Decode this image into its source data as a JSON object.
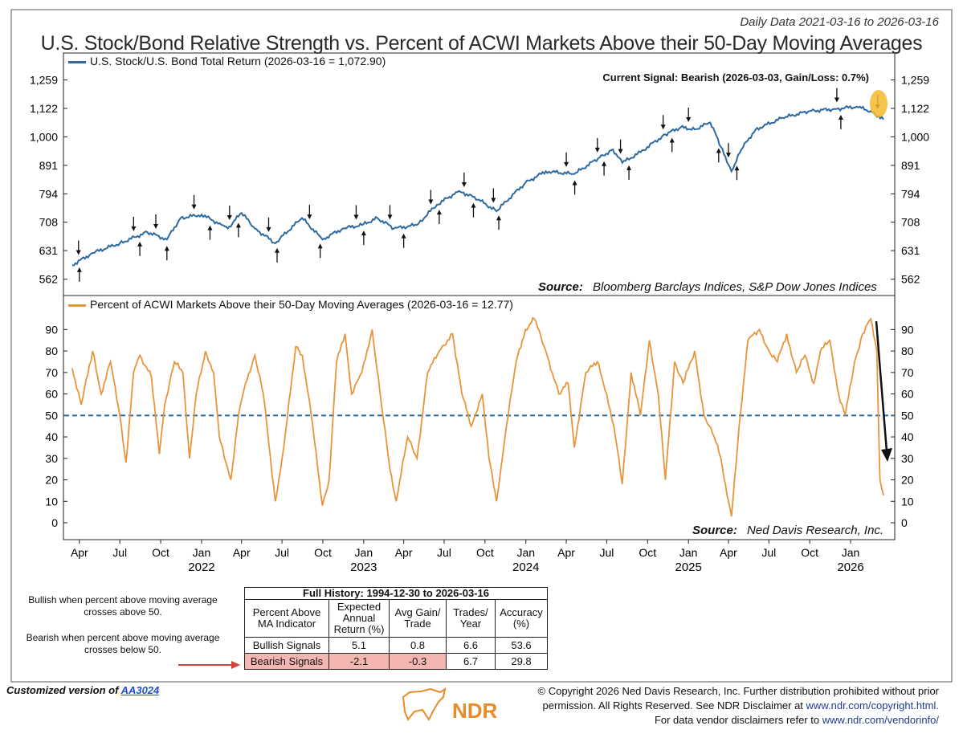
{
  "header": {
    "date_range": "Daily Data 2021-03-16 to 2026-03-16",
    "title": "U.S. Stock/Bond Relative Strength vs. Percent of ACWI Markets Above their 50-Day Moving Averages"
  },
  "top_panel": {
    "legend": "U.S. Stock/U.S. Bond Total Return (2026-03-16 = 1,072.90)",
    "signal": "Current Signal: Bearish (2026-03-03, Gain/Loss: 0.7%)",
    "source_label": "Source:",
    "source_text": "Bloomberg Barclays Indices, S&P Dow Jones Indices"
  },
  "bottom_panel": {
    "legend": "Percent of ACWI Markets Above their 50-Day Moving Averages (2026-03-16 = 12.77)",
    "source_label": "Source:",
    "source_text": "Ned Davis Research, Inc."
  },
  "colors": {
    "stock_bond": "#2d6a9f",
    "acwi": "#e8943a",
    "threshold": "#2d6a9f",
    "highlight": "#f5b82e",
    "bearish_fill": "#f4b6b0"
  },
  "notes": {
    "bullish": "Bullish when percent above moving average crosses above 50.",
    "bearish": "Bearish when percent above moving average crosses below 50."
  },
  "table": {
    "title": "Full History: 1994-12-30 to 2026-03-16",
    "headers": [
      "Percent Above MA Indicator",
      "Expected Annual Return (%)",
      "Avg Gain/ Trade",
      "Trades/ Year",
      "Accuracy (%)"
    ],
    "rows": [
      [
        "Bullish Signals",
        "5.1",
        "0.8",
        "6.6",
        "53.6"
      ],
      [
        "Bearish Signals",
        "-2.1",
        "-0.3",
        "6.7",
        "29.8"
      ]
    ]
  },
  "footer": {
    "custom_prefix": "Customized version of",
    "custom_link": "AA3024",
    "copyright_line1": "© Copyright 2026 Ned Davis Research, Inc. Further distribution prohibited without prior",
    "copyright_line2a": "permission. All Rights Reserved. See NDR Disclaimer at",
    "copyright_url1": "www.ndr.com/copyright.html.",
    "copyright_line3a": "For data vendor disclaimers refer to",
    "copyright_url2": "www.ndr.com/vendorinfo/",
    "logo_text": "NDR"
  },
  "chart_data": [
    {
      "type": "line",
      "name": "U.S. Stock/U.S. Bond Total Return",
      "scale": "log",
      "ylim": [
        540,
        1320
      ],
      "yticks": [
        562,
        631,
        708,
        794,
        891,
        1000,
        1122,
        1259
      ],
      "ytick_labels": [
        "562",
        "631",
        "708",
        "794",
        "891",
        "1,000",
        "1,122",
        "1,259"
      ],
      "x": [
        "2021-03-16",
        "2021-05-01",
        "2021-07-01",
        "2021-09-01",
        "2021-10-15",
        "2021-11-15",
        "2022-01-01",
        "2022-02-15",
        "2022-03-01",
        "2022-04-01",
        "2022-05-01",
        "2022-06-16",
        "2022-08-15",
        "2022-09-30",
        "2022-11-15",
        "2022-12-28",
        "2023-02-01",
        "2023-03-10",
        "2023-05-01",
        "2023-06-15",
        "2023-07-31",
        "2023-08-31",
        "2023-10-27",
        "2023-12-31",
        "2024-02-15",
        "2024-04-19",
        "2024-06-15",
        "2024-07-15",
        "2024-08-05",
        "2024-09-15",
        "2024-11-10",
        "2024-12-15",
        "2025-01-15",
        "2025-02-19",
        "2025-03-15",
        "2025-04-08",
        "2025-04-30",
        "2025-06-01",
        "2025-08-01",
        "2025-10-01",
        "2025-12-01",
        "2026-01-15",
        "2026-02-15",
        "2026-03-16"
      ],
      "values": [
        595,
        625,
        650,
        680,
        660,
        720,
        730,
        700,
        690,
        735,
        690,
        650,
        720,
        660,
        690,
        700,
        720,
        690,
        700,
        760,
        800,
        790,
        740,
        830,
        870,
        860,
        920,
        950,
        900,
        940,
        1010,
        1040,
        1030,
        1060,
        960,
        870,
        950,
        1030,
        1080,
        1110,
        1120,
        1130,
        1110,
        1072.9
      ],
      "signals": [
        {
          "date": "2021-03-30",
          "dir": "down"
        },
        {
          "date": "2021-04-01",
          "dir": "up"
        },
        {
          "date": "2021-08-01",
          "dir": "down"
        },
        {
          "date": "2021-08-15",
          "dir": "up"
        },
        {
          "date": "2021-09-20",
          "dir": "down"
        },
        {
          "date": "2021-10-15",
          "dir": "up"
        },
        {
          "date": "2021-12-15",
          "dir": "down"
        },
        {
          "date": "2022-01-20",
          "dir": "up"
        },
        {
          "date": "2022-03-05",
          "dir": "down"
        },
        {
          "date": "2022-03-25",
          "dir": "up"
        },
        {
          "date": "2022-06-01",
          "dir": "down"
        },
        {
          "date": "2022-06-20",
          "dir": "up"
        },
        {
          "date": "2022-09-01",
          "dir": "down"
        },
        {
          "date": "2022-09-25",
          "dir": "up"
        },
        {
          "date": "2022-12-15",
          "dir": "down"
        },
        {
          "date": "2023-01-01",
          "dir": "up"
        },
        {
          "date": "2023-03-01",
          "dir": "down"
        },
        {
          "date": "2023-04-01",
          "dir": "up"
        },
        {
          "date": "2023-06-01",
          "dir": "down"
        },
        {
          "date": "2023-06-20",
          "dir": "up"
        },
        {
          "date": "2023-08-15",
          "dir": "down"
        },
        {
          "date": "2023-09-05",
          "dir": "up"
        },
        {
          "date": "2023-10-20",
          "dir": "down"
        },
        {
          "date": "2023-11-01",
          "dir": "up"
        },
        {
          "date": "2024-04-01",
          "dir": "down"
        },
        {
          "date": "2024-04-20",
          "dir": "up"
        },
        {
          "date": "2024-06-10",
          "dir": "down"
        },
        {
          "date": "2024-06-25",
          "dir": "up"
        },
        {
          "date": "2024-08-01",
          "dir": "down"
        },
        {
          "date": "2024-08-20",
          "dir": "up"
        },
        {
          "date": "2024-11-05",
          "dir": "down"
        },
        {
          "date": "2024-11-25",
          "dir": "up"
        },
        {
          "date": "2025-01-01",
          "dir": "down"
        },
        {
          "date": "2025-03-10",
          "dir": "up"
        },
        {
          "date": "2025-04-01",
          "dir": "down"
        },
        {
          "date": "2025-04-20",
          "dir": "up"
        },
        {
          "date": "2025-12-01",
          "dir": "down"
        },
        {
          "date": "2025-12-10",
          "dir": "up"
        },
        {
          "date": "2026-03-03",
          "dir": "down"
        }
      ]
    },
    {
      "type": "line",
      "name": "Percent of ACWI Markets Above their 50-Day Moving Averages",
      "ylim": [
        0,
        95
      ],
      "yticks": [
        0,
        10,
        20,
        30,
        40,
        50,
        60,
        70,
        80,
        90
      ],
      "threshold": 50,
      "x": [
        "2021-03-16",
        "2021-04-05",
        "2021-05-01",
        "2021-05-20",
        "2021-06-10",
        "2021-07-01",
        "2021-07-15",
        "2021-08-01",
        "2021-08-15",
        "2021-09-10",
        "2021-09-28",
        "2021-10-10",
        "2021-11-01",
        "2021-11-20",
        "2021-12-05",
        "2021-12-20",
        "2022-01-10",
        "2022-01-28",
        "2022-02-10",
        "2022-03-08",
        "2022-03-25",
        "2022-04-10",
        "2022-05-01",
        "2022-05-20",
        "2022-06-16",
        "2022-07-05",
        "2022-08-01",
        "2022-08-16",
        "2022-09-05",
        "2022-09-30",
        "2022-10-15",
        "2022-11-01",
        "2022-11-20",
        "2022-12-05",
        "2022-12-28",
        "2023-01-20",
        "2023-02-10",
        "2023-03-01",
        "2023-03-15",
        "2023-04-10",
        "2023-05-01",
        "2023-05-25",
        "2023-06-20",
        "2023-07-20",
        "2023-08-10",
        "2023-08-31",
        "2023-09-25",
        "2023-10-10",
        "2023-10-27",
        "2023-11-15",
        "2023-12-10",
        "2023-12-31",
        "2024-01-20",
        "2024-02-15",
        "2024-03-15",
        "2024-04-05",
        "2024-04-19",
        "2024-05-15",
        "2024-06-10",
        "2024-07-01",
        "2024-07-17",
        "2024-08-05",
        "2024-08-25",
        "2024-09-15",
        "2024-10-05",
        "2024-10-25",
        "2024-11-10",
        "2024-12-01",
        "2024-12-20",
        "2025-01-15",
        "2025-02-05",
        "2025-02-28",
        "2025-03-15",
        "2025-04-01",
        "2025-04-08",
        "2025-04-25",
        "2025-05-15",
        "2025-06-10",
        "2025-07-01",
        "2025-07-20",
        "2025-08-10",
        "2025-09-01",
        "2025-09-20",
        "2025-10-10",
        "2025-10-25",
        "2025-11-15",
        "2025-12-05",
        "2025-12-20",
        "2026-01-10",
        "2026-01-28",
        "2026-02-15",
        "2026-03-01",
        "2026-03-08",
        "2026-03-16"
      ],
      "values": [
        72,
        55,
        80,
        60,
        75,
        50,
        28,
        70,
        78,
        68,
        32,
        55,
        75,
        70,
        30,
        60,
        80,
        70,
        40,
        20,
        50,
        65,
        78,
        60,
        10,
        35,
        82,
        78,
        50,
        8,
        20,
        75,
        88,
        60,
        70,
        90,
        55,
        25,
        10,
        40,
        30,
        70,
        80,
        88,
        60,
        45,
        60,
        30,
        10,
        40,
        75,
        90,
        95,
        80,
        60,
        65,
        35,
        70,
        75,
        60,
        45,
        18,
        70,
        50,
        85,
        60,
        20,
        75,
        65,
        80,
        50,
        40,
        30,
        10,
        3,
        45,
        85,
        90,
        80,
        75,
        88,
        70,
        78,
        65,
        80,
        85,
        60,
        50,
        75,
        88,
        95,
        80,
        20,
        12.77
      ]
    }
  ],
  "x_axis": {
    "months": [
      "Apr",
      "Jul",
      "Oct",
      "Jan",
      "Apr",
      "Jul",
      "Oct",
      "Jan",
      "Apr",
      "Jul",
      "Oct",
      "Jan",
      "Apr",
      "Jul",
      "Oct",
      "Jan",
      "Apr",
      "Jul",
      "Oct",
      "Jan"
    ],
    "month_dates": [
      "2021-04-01",
      "2021-07-01",
      "2021-10-01",
      "2022-01-01",
      "2022-04-01",
      "2022-07-01",
      "2022-10-01",
      "2023-01-01",
      "2023-04-01",
      "2023-07-01",
      "2023-10-01",
      "2024-01-01",
      "2024-04-01",
      "2024-07-01",
      "2024-10-01",
      "2025-01-01",
      "2025-04-01",
      "2025-07-01",
      "2025-10-01",
      "2026-01-01"
    ],
    "years": [
      "2022",
      "2023",
      "2024",
      "2025",
      "2026"
    ],
    "year_dates": [
      "2022-01-01",
      "2023-01-01",
      "2024-01-01",
      "2025-01-01",
      "2026-01-01"
    ],
    "start": "2021-03-16",
    "end": "2026-03-16"
  }
}
